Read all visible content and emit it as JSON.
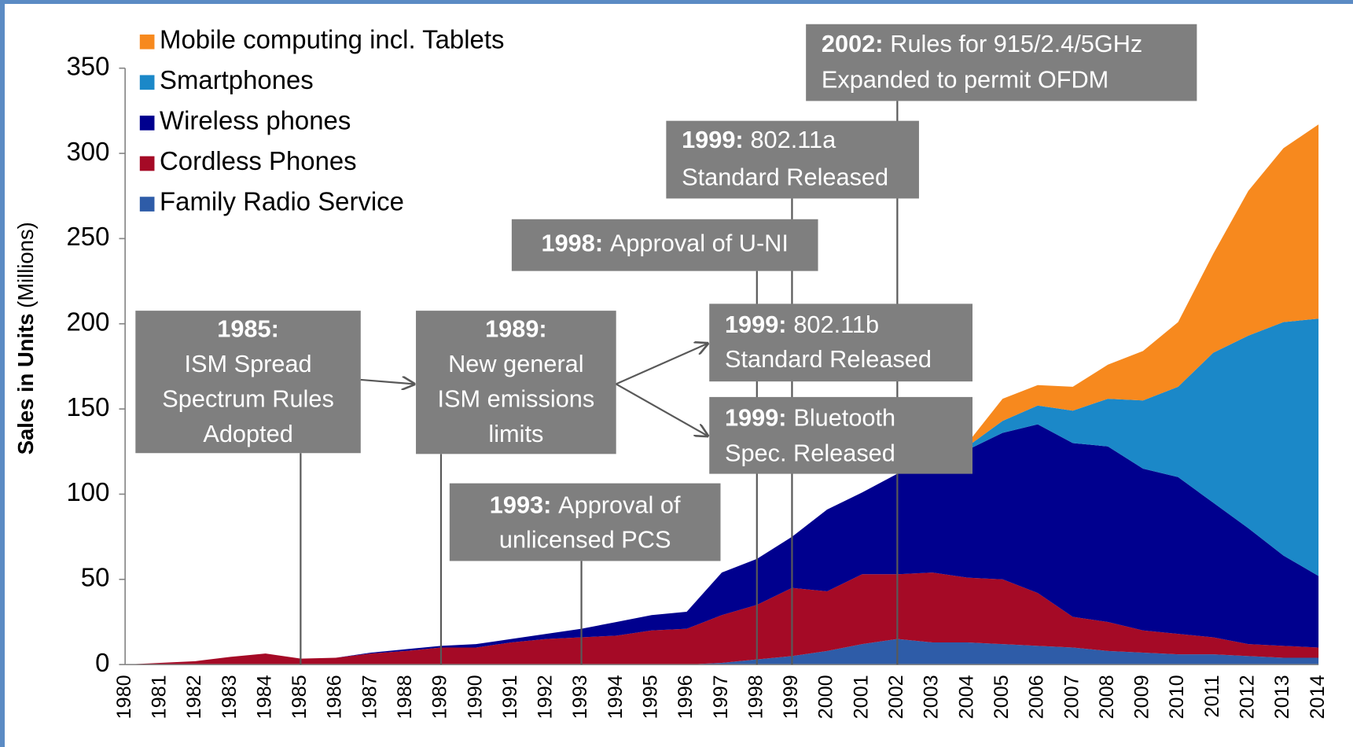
{
  "chart_data": {
    "type": "stacked_area",
    "y_label": {
      "bold": "Sales in Units",
      "text": "(Millions)"
    },
    "categories": [
      "1980",
      "1981",
      "1982",
      "1983",
      "1984",
      "1985",
      "1986",
      "1987",
      "1988",
      "1989",
      "1990",
      "1991",
      "1992",
      "1993",
      "1994",
      "1995",
      "1996",
      "1997",
      "1998",
      "1999",
      "2000",
      "2001",
      "2002",
      "2003",
      "2004",
      "2005",
      "2006",
      "2007",
      "2008",
      "2009",
      "2010",
      "2011",
      "2012",
      "2013",
      "2014"
    ],
    "series": [
      {
        "name": "Family Radio Service",
        "color": "#2e5ca8",
        "values": [
          0,
          0,
          0,
          0,
          0,
          0,
          0,
          0,
          0,
          0,
          0,
          0,
          0,
          0,
          0,
          0,
          0,
          1,
          3,
          5,
          8,
          12,
          15,
          13,
          13,
          12,
          11,
          10,
          8,
          7,
          6,
          6,
          5,
          4,
          4
        ]
      },
      {
        "name": "Cordless Phones",
        "color": "#a50a26",
        "values": [
          0,
          1,
          2,
          4.5,
          6.5,
          3.5,
          4,
          6.5,
          8,
          10,
          10,
          13,
          15,
          16,
          17,
          20,
          21,
          28,
          32,
          40,
          35,
          41,
          38,
          41,
          38,
          38,
          31,
          18,
          17,
          13,
          12,
          10,
          7,
          7,
          6
        ]
      },
      {
        "name": "Wireless phones",
        "color": "#00008e",
        "values": [
          0,
          0,
          0,
          0,
          0,
          0,
          0,
          0.5,
          1,
          1,
          2,
          2,
          3,
          5,
          8,
          9,
          10,
          25,
          27,
          30,
          48,
          48,
          59,
          66,
          75,
          86,
          99,
          102,
          103,
          95,
          92,
          79,
          68,
          53,
          42
        ]
      },
      {
        "name": "Smartphones",
        "color": "#1b88c8",
        "values": [
          0,
          0,
          0,
          0,
          0,
          0,
          0,
          0,
          0,
          0,
          0,
          0,
          0,
          0,
          0,
          0,
          0,
          0,
          0,
          0,
          0,
          0,
          0,
          0,
          2,
          7,
          11,
          19,
          28,
          40,
          53,
          88,
          113,
          137,
          151
        ]
      },
      {
        "name": "Mobile computing incl. Tablets",
        "color": "#f7891e",
        "values": [
          0,
          0,
          0,
          0,
          0,
          0,
          0,
          0,
          0,
          0,
          0,
          0,
          0,
          0,
          0,
          0,
          0,
          0,
          0,
          0,
          0,
          0,
          0,
          0,
          2,
          13,
          12,
          14,
          20,
          29,
          38,
          58,
          85,
          102,
          114
        ]
      }
    ],
    "ylim": [
      0,
      350
    ],
    "yticks": [
      0,
      50,
      100,
      150,
      200,
      250,
      300,
      350
    ],
    "annotations": [
      {
        "year": "1985:",
        "lines": [
          "ISM Spread",
          "Spectrum Rules",
          "Adopted"
        ]
      },
      {
        "year": "1989:",
        "lines": [
          "New general",
          "ISM emissions",
          "limits"
        ]
      },
      {
        "year": "1993:",
        "lines": [
          "Approval of",
          "unlicensed PCS"
        ]
      },
      {
        "year": "1998:",
        "lines": [
          "Approval of U-NI"
        ]
      },
      {
        "year": "1999:",
        "lines": [
          "802.11a",
          "Standard Released"
        ]
      },
      {
        "year": "1999:",
        "lines": [
          "802.11b",
          "Standard Released"
        ]
      },
      {
        "year": "1999:",
        "lines": [
          "Bluetooth",
          "Spec. Released"
        ]
      },
      {
        "year": "2002:",
        "lines": [
          "Rules for 915/2.4/5GHz",
          "Expanded to permit OFDM"
        ]
      }
    ]
  }
}
